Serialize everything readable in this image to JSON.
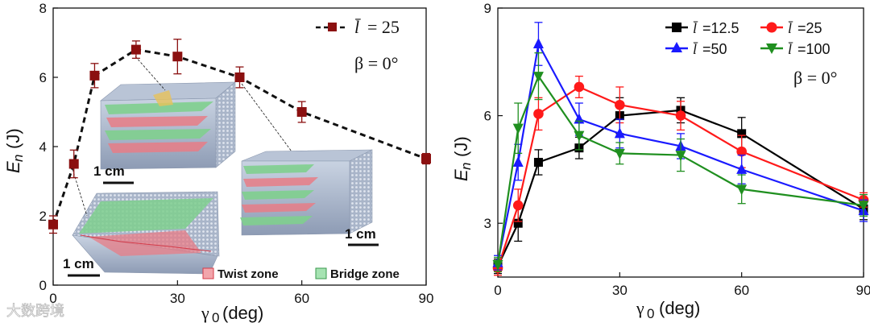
{
  "chart_data": [
    {
      "type": "line",
      "panel": "left",
      "xlabel_greek": "γ",
      "xlabel_sub": "0",
      "xlabel_unit": "(deg)",
      "ylabel_main": "E",
      "ylabel_sub": "n",
      "ylabel_unit": "(J)",
      "xlim": [
        0,
        90
      ],
      "ylim": [
        0,
        8
      ],
      "xticks": [
        0,
        30,
        60,
        90
      ],
      "yticks": [
        0,
        2,
        4,
        6,
        8
      ],
      "series": [
        {
          "name": "l̄ = 25",
          "legend_symbol": "l̄",
          "legend_value": "= 25",
          "color": "#8b1010",
          "marker": "square",
          "line": "dashed",
          "x": [
            0,
            5,
            10,
            20,
            30,
            45,
            60,
            90
          ],
          "y": [
            1.75,
            3.5,
            6.05,
            6.8,
            6.6,
            6.0,
            5.0,
            3.65
          ],
          "err": [
            0.25,
            0.4,
            0.35,
            0.25,
            0.5,
            0.3,
            0.3,
            0.15
          ]
        }
      ],
      "annotations": {
        "beta": "β = 0°",
        "scale_label": "1 cm",
        "twist_zone": "Twist zone",
        "bridge_zone": "Bridge zone"
      }
    },
    {
      "type": "line",
      "panel": "right",
      "xlabel_greek": "γ",
      "xlabel_sub": "0",
      "xlabel_unit": "(deg)",
      "ylabel_main": "E",
      "ylabel_sub": "n",
      "ylabel_unit": "(J)",
      "xlim": [
        0,
        90
      ],
      "ylim": [
        1.5,
        9
      ],
      "xticks": [
        0,
        30,
        60,
        90
      ],
      "yticks": [
        3,
        6,
        9
      ],
      "series": [
        {
          "name": "l̄ =12.5",
          "legend_value": "=12.5",
          "color": "#000000",
          "marker": "square",
          "x": [
            0,
            5,
            10,
            20,
            30,
            45,
            60,
            90
          ],
          "y": [
            1.8,
            3.0,
            4.7,
            5.1,
            6.0,
            6.15,
            5.5,
            3.4
          ],
          "err": [
            0.2,
            0.5,
            0.35,
            0.3,
            0.5,
            0.35,
            0.45,
            0.3
          ]
        },
        {
          "name": "l̄ =25",
          "legend_value": "=25",
          "color": "#ff1a1a",
          "marker": "circle",
          "x": [
            0,
            5,
            10,
            20,
            30,
            45,
            60,
            90
          ],
          "y": [
            1.75,
            3.5,
            6.05,
            6.8,
            6.3,
            6.0,
            5.0,
            3.65
          ],
          "err": [
            0.2,
            0.45,
            0.45,
            0.3,
            0.5,
            0.4,
            0.45,
            0.2
          ]
        },
        {
          "name": "l̄ =50",
          "legend_value": "=50",
          "color": "#1a1aff",
          "marker": "triangle-up",
          "x": [
            0,
            5,
            10,
            20,
            30,
            45,
            60,
            90
          ],
          "y": [
            1.9,
            4.7,
            8.0,
            5.9,
            5.5,
            5.15,
            4.5,
            3.35
          ],
          "err": [
            0.2,
            0.5,
            0.6,
            0.45,
            0.4,
            0.35,
            0.4,
            0.3
          ]
        },
        {
          "name": "l̄ =100",
          "legend_value": "=100",
          "color": "#1f8f1f",
          "marker": "triangle-down",
          "x": [
            0,
            5,
            10,
            20,
            30,
            45,
            60,
            90
          ],
          "y": [
            1.85,
            5.65,
            7.1,
            5.45,
            4.95,
            4.9,
            3.95,
            3.5
          ],
          "err": [
            0.2,
            0.7,
            0.65,
            0.4,
            0.3,
            0.45,
            0.4,
            0.3
          ]
        }
      ],
      "annotations": {
        "legend_symbol": "l̄",
        "beta": "β = 0°"
      }
    }
  ],
  "watermark": "大数跨境"
}
